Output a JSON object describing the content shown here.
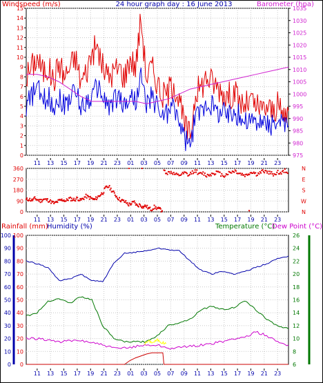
{
  "header": {
    "title": "24 hour graph day : 16 June 2013",
    "left_label": "Windspeed (m/s)",
    "right_label": "Barometer (hpa)"
  },
  "bottom_header": {
    "rainfall_label": "Rainfall (mm)",
    "humidity_label": "Humidity (%)",
    "temperature_label": "Temperature (°C)",
    "dewpoint_label": "Dew Point (°C)"
  },
  "colors": {
    "wind_gust": "#e00000",
    "wind_avg": "#0000dd",
    "barometer": "#d020d0",
    "direction": "#e00000",
    "humidity": "#0000aa",
    "temperature": "#007700",
    "dewpoint": "#cc00cc",
    "rain": "#cc0000",
    "rain_rate": "#ffff00"
  },
  "chart_data": [
    {
      "type": "line",
      "name": "wind-barometer",
      "x_ticks": [
        "11",
        "13",
        "15",
        "17",
        "19",
        "21",
        "23",
        "01",
        "03",
        "05",
        "07",
        "09",
        "11",
        "13",
        "15",
        "17",
        "19",
        "21",
        "23"
      ],
      "x_hours": [
        0,
        24
      ],
      "ylim": [
        0,
        15
      ],
      "y_ticks": [
        0,
        1,
        2,
        3,
        4,
        5,
        6,
        7,
        8,
        9,
        10,
        11,
        12,
        13,
        14,
        15
      ],
      "y2lim": [
        975,
        1035
      ],
      "y2_ticks": [
        975,
        980,
        985,
        990,
        995,
        1000,
        1005,
        1010,
        1015,
        1020,
        1025,
        1030,
        1035
      ],
      "series": [
        {
          "key": "gust",
          "x": [
            0,
            0.5,
            1,
            1.5,
            2,
            2.5,
            3,
            3.5,
            4,
            4.5,
            5,
            5.5,
            6,
            6.5,
            7,
            7.5,
            8,
            8.5,
            9,
            9.5,
            10,
            10.5,
            11,
            11.5,
            12,
            12.5,
            13,
            13.5,
            14,
            14.5,
            15,
            15.5,
            16,
            16.5,
            17,
            17.5,
            18,
            18.5,
            19,
            19.5,
            20,
            20.5,
            21,
            21.5,
            22,
            22.5,
            23,
            23.5,
            24
          ],
          "values": [
            8,
            9,
            10,
            8.5,
            9,
            7.5,
            9.5,
            8,
            9,
            10,
            7.5,
            8.5,
            10.5,
            11,
            9,
            8,
            8.5,
            9,
            8,
            10,
            9,
            14,
            8,
            9,
            7.5,
            6,
            6.5,
            7.5,
            5.5,
            3,
            2,
            6.5,
            7,
            8,
            7.5,
            7,
            6.5,
            6,
            6.5,
            5.5,
            5,
            5.5,
            5,
            4.5,
            5,
            4.5,
            5,
            4,
            4.5
          ]
        },
        {
          "key": "avg",
          "x": [
            0,
            0.5,
            1,
            1.5,
            2,
            2.5,
            3,
            3.5,
            4,
            4.5,
            5,
            5.5,
            6,
            6.5,
            7,
            7.5,
            8,
            8.5,
            9,
            9.5,
            10,
            10.5,
            11,
            11.5,
            12,
            12.5,
            13,
            13.5,
            14,
            14.5,
            15,
            15.5,
            16,
            16.5,
            17,
            17.5,
            18,
            18.5,
            19,
            19.5,
            20,
            20.5,
            21,
            21.5,
            22,
            22.5,
            23,
            23.5,
            24
          ],
          "values": [
            5,
            6,
            7,
            5.5,
            6,
            5,
            6,
            5,
            6,
            6.5,
            5,
            5.5,
            6,
            7,
            6,
            5,
            5.5,
            6,
            5,
            6,
            5.5,
            8,
            5,
            6,
            5,
            4,
            4.5,
            5,
            3.5,
            1.5,
            1,
            4,
            4.5,
            5.5,
            5,
            4.5,
            4.5,
            4,
            4.5,
            4,
            3.5,
            3.5,
            3.5,
            3,
            3.5,
            3,
            3.5,
            3,
            3
          ]
        },
        {
          "key": "baro",
          "axis": "right",
          "x": [
            0,
            1,
            2,
            3,
            4,
            5,
            6,
            7,
            8,
            9,
            10,
            11,
            12,
            13,
            14,
            15,
            16,
            17,
            18,
            19,
            20,
            21,
            22,
            23,
            24
          ],
          "values": [
            1008,
            1008,
            1007,
            1005,
            1002,
            999,
            997,
            997,
            997,
            997,
            997,
            996,
            997,
            998,
            1000,
            1002,
            1003,
            1004,
            1005,
            1006,
            1007,
            1008,
            1009,
            1010,
            1011
          ]
        }
      ]
    },
    {
      "type": "scatter",
      "name": "wind-direction",
      "ylim": [
        0,
        360
      ],
      "y_ticks": [
        0,
        90,
        180,
        270,
        360
      ],
      "compass": [
        "N",
        "W",
        "S",
        "E",
        "N"
      ],
      "segments": [
        {
          "x0": 0,
          "x1": 12.5,
          "values": [
            100,
            105,
            95,
            110,
            100,
            90,
            105,
            100,
            95,
            80,
            70,
            85,
            95,
            100,
            90,
            110,
            105,
            100,
            115,
            95,
            110,
            130,
            120,
            110,
            100,
            120,
            140,
            160,
            200,
            210,
            180,
            150,
            120,
            100,
            90,
            80,
            60,
            70,
            80,
            50,
            60,
            40,
            50,
            30,
            20,
            40,
            30,
            20,
            10
          ]
        },
        {
          "x0": 12.6,
          "x1": 24,
          "values": [
            340,
            320,
            330,
            310,
            300,
            310,
            320,
            300,
            330,
            340,
            310,
            320,
            300,
            310,
            320,
            330,
            310,
            300,
            320,
            330,
            340,
            320,
            310,
            300,
            320,
            330,
            310,
            320,
            340,
            330,
            320,
            310,
            330,
            320,
            340,
            330
          ]
        }
      ],
      "isolated": [
        {
          "x": 9.4,
          "v": 360
        },
        {
          "x": 10.6,
          "v": 360
        },
        {
          "x": 20.4,
          "v": 10
        }
      ]
    },
    {
      "type": "line",
      "name": "rain-humidity-temp",
      "ylim": [
        0,
        100
      ],
      "y_ticks": [
        0,
        10,
        20,
        30,
        40,
        50,
        60,
        70,
        80,
        90,
        100
      ],
      "y2lim": [
        6,
        26
      ],
      "y2_ticks": [
        6,
        8,
        10,
        12,
        14,
        16,
        18,
        20,
        22,
        24,
        26
      ],
      "series": [
        {
          "key": "humidity",
          "x": [
            0,
            1,
            2,
            3,
            4,
            5,
            6,
            7,
            8,
            9,
            10,
            11,
            12,
            13,
            14,
            15,
            16,
            17,
            18,
            19,
            20,
            21,
            22,
            23,
            24
          ],
          "values": [
            80,
            78,
            75,
            65,
            66,
            70,
            65,
            64,
            78,
            86,
            87,
            88,
            90,
            89,
            88,
            80,
            73,
            70,
            72,
            70,
            72,
            75,
            78,
            82,
            84
          ]
        },
        {
          "key": "temperature",
          "axis": "right",
          "x": [
            0,
            1,
            2,
            3,
            4,
            5,
            6,
            7,
            8,
            9,
            10,
            11,
            12,
            13,
            14,
            15,
            16,
            17,
            18,
            19,
            20,
            21,
            22,
            23,
            24
          ],
          "values": [
            13.5,
            14,
            15.8,
            16.2,
            15.5,
            16.5,
            16,
            12,
            10,
            9.5,
            9.5,
            9.5,
            10.5,
            12,
            12.5,
            13,
            14.5,
            15,
            14.5,
            14.8,
            15.8,
            14.5,
            13,
            12,
            11.5
          ]
        },
        {
          "key": "dewpoint",
          "axis": "right",
          "x": [
            0,
            1,
            2,
            3,
            4,
            5,
            6,
            7,
            8,
            9,
            10,
            11,
            12,
            13,
            14,
            15,
            16,
            17,
            18,
            19,
            20,
            21,
            22,
            23,
            24
          ],
          "values": [
            10,
            10,
            9.8,
            9.5,
            9.6,
            9.7,
            9.4,
            9,
            8.5,
            8.5,
            8.8,
            9,
            9,
            8.5,
            8.6,
            8.8,
            9,
            9.2,
            9.5,
            10,
            10.2,
            11,
            10.5,
            9.5,
            9
          ]
        },
        {
          "key": "rain",
          "x": [
            0,
            9,
            9.5,
            10,
            11,
            11.5,
            12,
            12.5,
            12.6,
            24
          ],
          "values": [
            0,
            0,
            3,
            5,
            8,
            9,
            9,
            9,
            0,
            0
          ]
        },
        {
          "key": "rainrate",
          "x": [
            10.8,
            11.2,
            11.6,
            12,
            12.4,
            12.8
          ],
          "values": [
            16,
            18,
            17,
            19,
            17,
            16
          ]
        }
      ]
    }
  ]
}
